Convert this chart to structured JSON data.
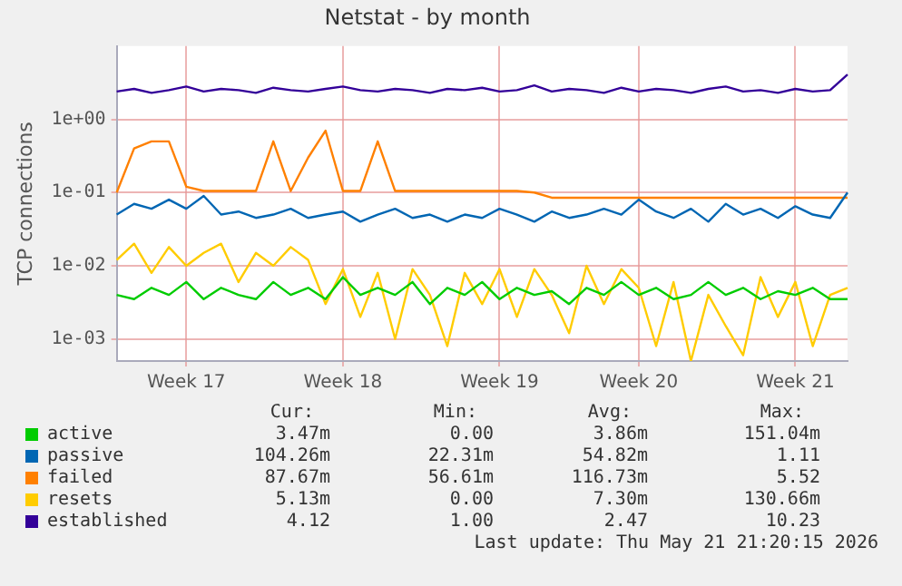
{
  "chart_data": {
    "type": "line",
    "title": "Netstat - by month",
    "ylabel": "TCP connections",
    "log": "y",
    "categories": [
      null,
      null,
      null,
      null,
      "Week 17",
      null,
      null,
      null,
      null,
      null,
      null,
      null,
      null,
      "Week 18",
      null,
      null,
      null,
      null,
      null,
      null,
      null,
      null,
      "Week 19",
      null,
      null,
      null,
      null,
      null,
      null,
      null,
      "Week 20",
      null,
      null,
      null,
      null,
      null,
      null,
      null,
      null,
      "Week 21",
      null,
      null,
      null
    ],
    "ylim": [
      0.0005,
      10
    ],
    "yticks": [
      {
        "value": 0.001,
        "label": "1e-03"
      },
      {
        "value": 0.01,
        "label": "1e-02"
      },
      {
        "value": 0.1,
        "label": "1e-01"
      },
      {
        "value": 1,
        "label": "1e+00"
      }
    ],
    "grid": true,
    "legend": "bottom left",
    "marker": "none",
    "line_style": "solid",
    "series": [
      {
        "name": "active",
        "color": "#00cc00",
        "values": [
          0.004,
          0.0035,
          0.005,
          0.004,
          0.006,
          0.0035,
          0.005,
          0.004,
          0.0035,
          0.006,
          0.004,
          0.005,
          0.0035,
          0.007,
          0.004,
          0.005,
          0.004,
          0.006,
          0.003,
          0.005,
          0.004,
          0.006,
          0.0035,
          0.005,
          0.004,
          0.0045,
          0.003,
          0.005,
          0.004,
          0.006,
          0.004,
          0.005,
          0.0035,
          0.004,
          0.006,
          0.004,
          0.005,
          0.0035,
          0.0045,
          0.004,
          0.005,
          0.0035,
          0.0035
        ]
      },
      {
        "name": "passive",
        "color": "#0066b3",
        "values": [
          0.05,
          0.07,
          0.06,
          0.08,
          0.06,
          0.09,
          0.05,
          0.055,
          0.045,
          0.05,
          0.06,
          0.045,
          0.05,
          0.055,
          0.04,
          0.05,
          0.06,
          0.045,
          0.05,
          0.04,
          0.05,
          0.045,
          0.06,
          0.05,
          0.04,
          0.055,
          0.045,
          0.05,
          0.06,
          0.05,
          0.08,
          0.055,
          0.045,
          0.06,
          0.04,
          0.07,
          0.05,
          0.06,
          0.045,
          0.065,
          0.05,
          0.045,
          0.1
        ]
      },
      {
        "name": "failed",
        "color": "#ff8000",
        "values": [
          0.1,
          0.4,
          0.5,
          0.5,
          0.12,
          0.105,
          0.105,
          0.105,
          0.105,
          0.5,
          0.105,
          0.3,
          0.7,
          0.105,
          0.105,
          0.5,
          0.105,
          0.105,
          0.105,
          0.105,
          0.105,
          0.105,
          0.105,
          0.105,
          0.1,
          0.085,
          0.085,
          0.085,
          0.085,
          0.085,
          0.085,
          0.085,
          0.085,
          0.085,
          0.085,
          0.085,
          0.085,
          0.085,
          0.085,
          0.085,
          0.085,
          0.085,
          0.085
        ]
      },
      {
        "name": "resets",
        "color": "#ffcc00",
        "values": [
          0.012,
          0.02,
          0.008,
          0.018,
          0.01,
          0.015,
          0.02,
          0.006,
          0.015,
          0.01,
          0.018,
          0.012,
          0.003,
          0.009,
          0.002,
          0.008,
          0.001,
          0.009,
          0.004,
          0.0008,
          0.008,
          0.003,
          0.009,
          0.002,
          0.009,
          0.004,
          0.0012,
          0.01,
          0.003,
          0.009,
          0.005,
          0.0008,
          0.006,
          0.0005,
          0.004,
          0.0015,
          0.0006,
          0.007,
          0.002,
          0.006,
          0.0008,
          0.004,
          0.005
        ]
      },
      {
        "name": "established",
        "color": "#330099",
        "values": [
          2.4,
          2.6,
          2.3,
          2.5,
          2.8,
          2.4,
          2.6,
          2.5,
          2.3,
          2.7,
          2.5,
          2.4,
          2.6,
          2.8,
          2.5,
          2.4,
          2.6,
          2.5,
          2.3,
          2.6,
          2.5,
          2.7,
          2.4,
          2.5,
          2.9,
          2.4,
          2.6,
          2.5,
          2.3,
          2.7,
          2.4,
          2.6,
          2.5,
          2.3,
          2.6,
          2.8,
          2.4,
          2.5,
          2.3,
          2.6,
          2.4,
          2.5,
          4.1
        ]
      }
    ],
    "annotations": [
      "Cur:",
      "Min:",
      "Avg:",
      "Max:",
      "3.47m",
      "0.00",
      "3.86m",
      "151.04m",
      "104.26m",
      "22.31m",
      "54.82m",
      "1.11",
      "87.67m",
      "56.61m",
      "116.73m",
      "5.52",
      "5.13m",
      "0.00",
      "7.30m",
      "130.66m",
      "4.12",
      "1.00",
      "2.47",
      "10.23",
      "Last update: Thu May 21 21:20:15 2026"
    ]
  }
}
